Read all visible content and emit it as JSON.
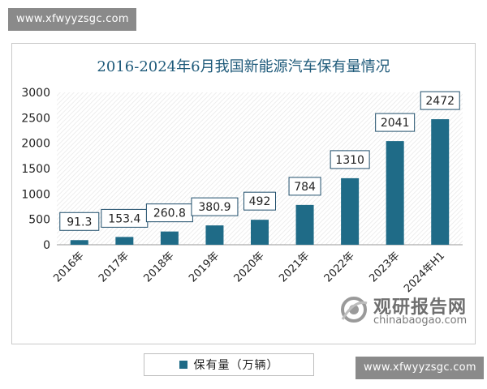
{
  "watermark_top": "www.xfwyyzsgc.com",
  "watermark_bottom": "www.xfwyyzsgc.com",
  "logo": {
    "name_cn": "观研报告网",
    "domain": "chinabaogao.com"
  },
  "colors": {
    "bar": "#1f6b87",
    "title": "#1e5a7a",
    "axis_text": "#222222"
  },
  "chart_data": {
    "type": "bar",
    "title": "2016-2024年6月我国新能源汽车保有量情况",
    "categories": [
      "2016年",
      "2017年",
      "2018年",
      "2019年",
      "2020年",
      "2021年",
      "2022年",
      "2023年",
      "2024年H1"
    ],
    "series": [
      {
        "name": "保有量（万辆）",
        "values": [
          91.3,
          153.4,
          260.8,
          380.9,
          492,
          784,
          1310,
          2041,
          2472
        ]
      }
    ],
    "data_labels": [
      "91.3",
      "153.4",
      "260.8",
      "380.9",
      "492",
      "784",
      "1310",
      "2041",
      "2472"
    ],
    "yticks": [
      0,
      500,
      1000,
      1500,
      2000,
      2500,
      3000
    ],
    "ylim": [
      0,
      3000
    ],
    "xlabel": "",
    "ylabel": "",
    "legend_position": "bottom",
    "background": "hatched"
  }
}
